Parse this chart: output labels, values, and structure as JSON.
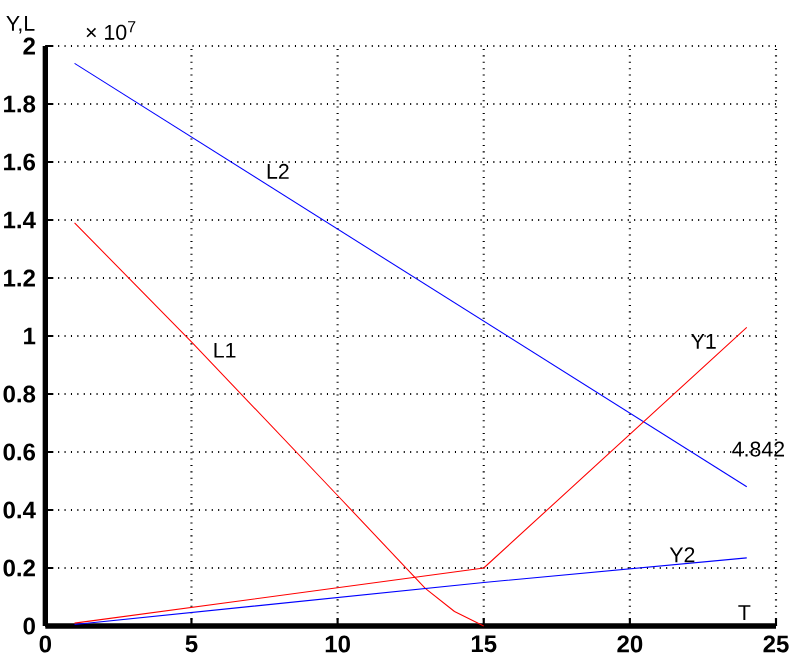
{
  "chart_data": {
    "type": "line",
    "xlabel": "T",
    "ylabel": "Y,L",
    "annotations": [
      "× 10$^{7}$",
      "4.842"
    ],
    "xlim": [
      0,
      25
    ],
    "ylim": [
      0,
      2
    ],
    "xticks": [
      0,
      5,
      10,
      15,
      20,
      25
    ],
    "yticks": [
      0,
      0.2,
      0.4,
      0.6,
      0.8,
      1,
      1.2,
      1.4,
      1.6,
      1.8,
      2
    ],
    "grid": true,
    "line_style": "solid",
    "marker": "none",
    "series": [
      {
        "name": "L1",
        "color": "#ff0000",
        "x": [
          1,
          5,
          10,
          13,
          14,
          15
        ],
        "values": [
          1.39,
          0.98,
          0.45,
          0.13,
          0.05,
          0
        ]
      },
      {
        "name": "L2",
        "color": "#0000ff",
        "x": [
          1,
          24
        ],
        "values": [
          1.94,
          0.48
        ]
      },
      {
        "name": "Y1",
        "color": "#ff0000",
        "x": [
          1,
          15,
          24
        ],
        "values": [
          0.01,
          0.2,
          1.03
        ]
      },
      {
        "name": "Y2",
        "color": "#0000ff",
        "x": [
          1,
          15,
          24
        ],
        "values": [
          0.005,
          0.15,
          0.235
        ]
      }
    ]
  }
}
